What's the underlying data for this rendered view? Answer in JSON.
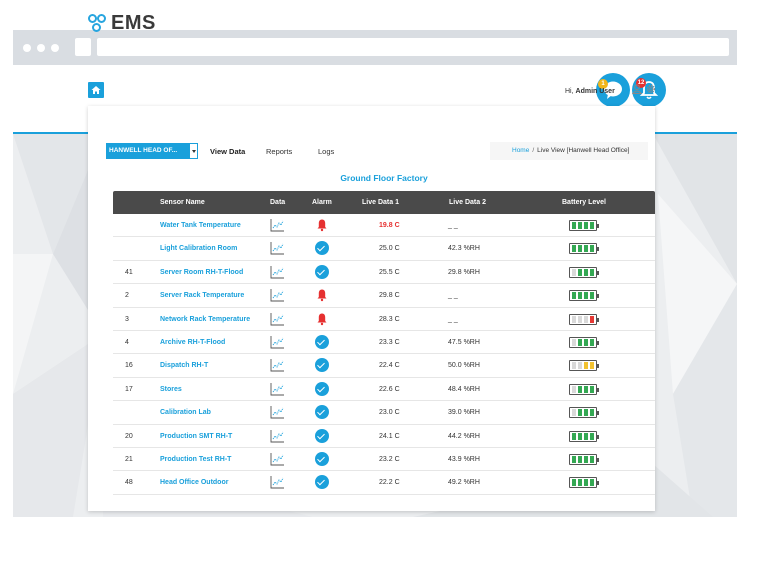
{
  "app": {
    "logo_text": "EMS",
    "greeting_prefix": "Hi,",
    "user_name": "Admin User",
    "notification_badge": "1",
    "alarm_badge": "12"
  },
  "toolbar": {
    "site_selector": "HANWELL HEAD OF...",
    "nav": [
      "View Data",
      "Reports",
      "Logs"
    ],
    "breadcrumb_home": "Home",
    "breadcrumb_separator": "/",
    "breadcrumb_current": "Live View [Hanwell Head Office]"
  },
  "section_title": "Ground Floor Factory",
  "table": {
    "headers": {
      "sensor_name": "Sensor Name",
      "data": "Data",
      "alarm": "Alarm",
      "live1": "Live Data 1",
      "live2": "Live Data 2",
      "battery": "Battery Level"
    },
    "rows": [
      {
        "id": "",
        "name": "Water Tank Temperature",
        "alarm": "bell",
        "live1": "19.8 C",
        "live1_alert": true,
        "live2": "_ _",
        "battery_level": 4,
        "battery_color": "#34a853"
      },
      {
        "id": "",
        "name": "Light Calibration Room",
        "alarm": "ok",
        "live1": "25.0 C",
        "live1_alert": false,
        "live2": "42.3 %RH",
        "battery_level": 4,
        "battery_color": "#34a853"
      },
      {
        "id": "41",
        "name": "Server Room RH-T-Flood",
        "alarm": "ok",
        "live1": "25.5 C",
        "live1_alert": false,
        "live2": "29.8 %RH",
        "battery_level": 3,
        "battery_color": "#34a853"
      },
      {
        "id": "2",
        "name": "Server Rack Temperature",
        "alarm": "bell",
        "live1": "29.8 C",
        "live1_alert": false,
        "live2": "_ _",
        "battery_level": 4,
        "battery_color": "#34a853"
      },
      {
        "id": "3",
        "name": "Network Rack Temperature",
        "alarm": "bell",
        "live1": "28.3 C",
        "live1_alert": false,
        "live2": "_ _",
        "battery_level": 1,
        "battery_color": "#e53935"
      },
      {
        "id": "4",
        "name": "Archive RH-T-Flood",
        "alarm": "ok",
        "live1": "23.3 C",
        "live1_alert": false,
        "live2": "47.5 %RH",
        "battery_level": 3,
        "battery_color": "#34a853"
      },
      {
        "id": "16",
        "name": "Dispatch RH-T",
        "alarm": "ok",
        "live1": "22.4 C",
        "live1_alert": false,
        "live2": "50.0 %RH",
        "battery_level": 2,
        "battery_color": "#f2c230"
      },
      {
        "id": "17",
        "name": "Stores",
        "alarm": "ok",
        "live1": "22.6 C",
        "live1_alert": false,
        "live2": "48.4 %RH",
        "battery_level": 3,
        "battery_color": "#34a853"
      },
      {
        "id": "",
        "name": "Calibration Lab",
        "alarm": "ok",
        "live1": "23.0 C",
        "live1_alert": false,
        "live2": "39.0 %RH",
        "battery_level": 3,
        "battery_color": "#34a853"
      },
      {
        "id": "20",
        "name": "Production SMT RH-T",
        "alarm": "ok",
        "live1": "24.1 C",
        "live1_alert": false,
        "live2": "44.2 %RH",
        "battery_level": 4,
        "battery_color": "#34a853"
      },
      {
        "id": "21",
        "name": "Production Test RH-T",
        "alarm": "ok",
        "live1": "23.2 C",
        "live1_alert": false,
        "live2": "43.9 %RH",
        "battery_level": 4,
        "battery_color": "#34a853"
      },
      {
        "id": "48",
        "name": "Head Office Outdoor",
        "alarm": "ok",
        "live1": "22.2 C",
        "live1_alert": false,
        "live2": "49.2 %RH",
        "battery_level": 4,
        "battery_color": "#34a853"
      }
    ]
  },
  "icons": {
    "home": "home-icon",
    "chat": "chat-bubble-icon",
    "bell": "bell-icon",
    "user": "user-icon",
    "gear": "gear-icon",
    "chart": "line-chart-icon",
    "ok": "checkmark-icon",
    "alarm": "alarm-bell-icon",
    "battery": "battery-icon"
  },
  "colors": {
    "accent": "#1aa0db",
    "alarm_red": "#e63030",
    "header_dark": "#4a4a4a"
  }
}
